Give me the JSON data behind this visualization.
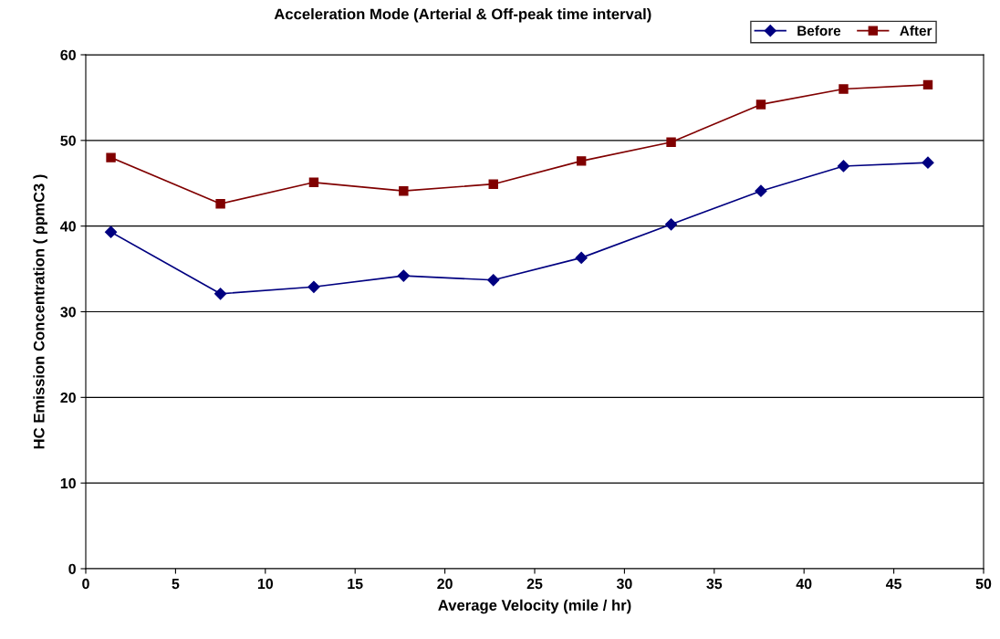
{
  "chart_data": {
    "type": "line",
    "title": "Acceleration Mode (Arterial & Off-peak time interval)",
    "xlabel": "Average Velocity (mile / hr)",
    "ylabel": "HC Emission Concentration ( ppmC3 )",
    "x": [
      1.4,
      7.5,
      12.7,
      17.7,
      22.7,
      27.6,
      32.6,
      37.6,
      42.2,
      46.9
    ],
    "series": [
      {
        "name": "Before",
        "color": "#000080",
        "marker": "diamond",
        "values": [
          39.3,
          32.1,
          32.9,
          34.2,
          33.7,
          36.3,
          40.2,
          44.1,
          47.0,
          47.4
        ]
      },
      {
        "name": "After",
        "color": "#800000",
        "marker": "square",
        "values": [
          48.0,
          42.6,
          45.1,
          44.1,
          44.9,
          47.6,
          49.8,
          54.2,
          56.0,
          56.5
        ]
      }
    ],
    "xlim": [
      0,
      50
    ],
    "xticks": [
      0,
      5,
      10,
      15,
      20,
      25,
      30,
      35,
      40,
      45,
      50
    ],
    "ylim": [
      0,
      60
    ],
    "yticks": [
      0,
      10,
      20,
      30,
      40,
      50,
      60
    ],
    "grid": "y",
    "legend": "top right"
  }
}
